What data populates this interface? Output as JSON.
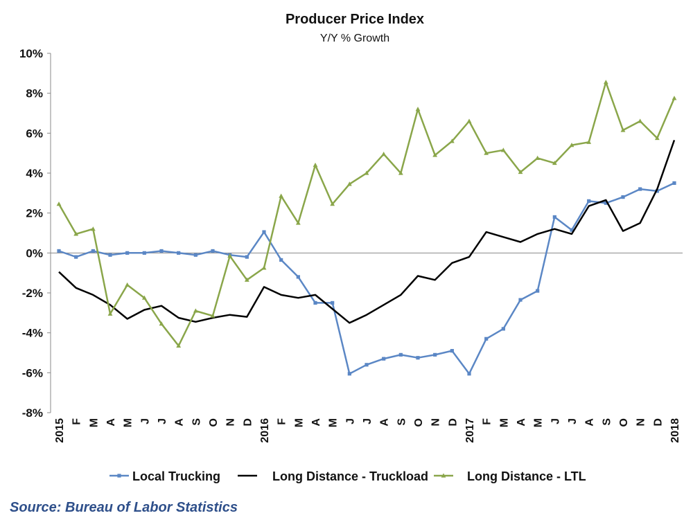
{
  "chart_data": {
    "type": "line",
    "title": "Producer Price Index",
    "subtitle": "Y/Y % Growth",
    "categories": [
      "2015",
      "F",
      "M",
      "A",
      "M",
      "J",
      "J",
      "A",
      "S",
      "O",
      "N",
      "D",
      "2016",
      "F",
      "M",
      "A",
      "M",
      "J",
      "J",
      "A",
      "S",
      "O",
      "N",
      "D",
      "2017",
      "F",
      "M",
      "A",
      "M",
      "J",
      "J",
      "A",
      "S",
      "O",
      "N",
      "D",
      "2018"
    ],
    "ylim": [
      -8,
      10
    ],
    "yticks": [
      -8,
      -6,
      -4,
      -2,
      0,
      2,
      4,
      6,
      8,
      10
    ],
    "ytick_labels": [
      "-8%",
      "-6%",
      "-4%",
      "-2%",
      "0%",
      "2%",
      "4%",
      "6%",
      "8%",
      "10%"
    ],
    "series": [
      {
        "name": "Local Trucking",
        "color": "#5b87c5",
        "marker": "square",
        "values": [
          0.1,
          -0.2,
          0.1,
          -0.1,
          0,
          0,
          0.1,
          0,
          -0.1,
          0.1,
          -0.1,
          -0.2,
          1.05,
          -0.35,
          -1.2,
          -2.5,
          -2.5,
          -6.05,
          -5.6,
          -5.3,
          -5.1,
          -5.25,
          -5.1,
          -4.9,
          -6.05,
          -4.3,
          -3.8,
          -2.35,
          -1.9,
          1.8,
          1.15,
          2.6,
          2.5,
          2.8,
          3.2,
          3.1,
          3.5
        ]
      },
      {
        "name": "Long Distance - Truckload",
        "color": "#000000",
        "marker": "none",
        "values": [
          -0.95,
          -1.75,
          -2.1,
          -2.6,
          -3.3,
          -2.85,
          -2.65,
          -3.25,
          -3.45,
          -3.25,
          -3.1,
          -3.2,
          -1.7,
          -2.1,
          -2.25,
          -2.1,
          -2.8,
          -3.5,
          -3.1,
          -2.6,
          -2.1,
          -1.15,
          -1.35,
          -0.5,
          -0.2,
          1.05,
          0.8,
          0.55,
          0.95,
          1.2,
          0.95,
          2.35,
          2.65,
          1.1,
          1.5,
          3.2,
          5.65
        ]
      },
      {
        "name": "Long Distance - LTL",
        "color": "#8aa64a",
        "marker": "triangle",
        "values": [
          2.45,
          0.95,
          1.2,
          -3.05,
          -1.6,
          -2.25,
          -3.55,
          -4.65,
          -2.9,
          -3.15,
          -0.15,
          -1.35,
          -0.75,
          2.85,
          1.5,
          4.4,
          2.45,
          3.45,
          4.0,
          4.95,
          4.0,
          7.2,
          4.9,
          5.6,
          6.6,
          5.0,
          5.15,
          4.05,
          4.75,
          4.5,
          5.4,
          5.55,
          8.55,
          6.15,
          6.6,
          5.75,
          7.75
        ]
      }
    ],
    "grid": false,
    "legend_position": "bottom"
  },
  "source": "Source: Bureau of Labor Statistics"
}
